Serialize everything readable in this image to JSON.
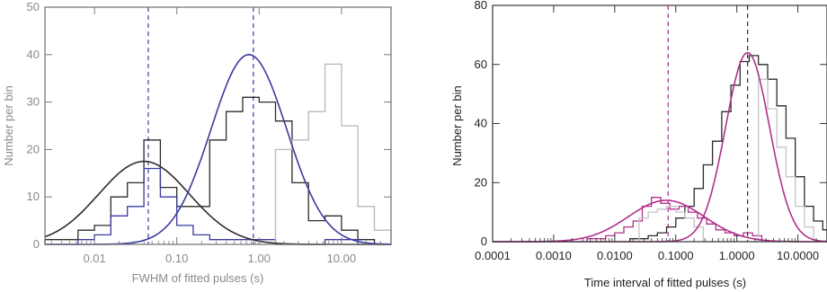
{
  "chart_data": [
    {
      "type": "line",
      "subtype": "histogram-with-gaussian-fits",
      "xscale": "log",
      "xlim": [
        0.0025,
        40
      ],
      "ylim": [
        0,
        50
      ],
      "xlabel": "FWHM of fitted pulses (s)",
      "ylabel": "Number per bin",
      "x_ticks": [
        {
          "value": 0.01,
          "label": "0.01"
        },
        {
          "value": 0.1,
          "label": "0.10"
        },
        {
          "value": 1,
          "label": "1.00"
        },
        {
          "value": 10,
          "label": "10.00"
        }
      ],
      "y_ticks": [
        {
          "value": 0,
          "label": "0"
        },
        {
          "value": 10,
          "label": "10"
        },
        {
          "value": 20,
          "label": "20"
        },
        {
          "value": 30,
          "label": "30"
        },
        {
          "value": 40,
          "label": "40"
        },
        {
          "value": 50,
          "label": "50"
        }
      ],
      "grid": false,
      "faded": true,
      "vlines": [
        {
          "x": 0.045,
          "color": "#3a3aa0"
        },
        {
          "x": 0.85,
          "color": "#3a3aa0"
        }
      ],
      "series": [
        {
          "kind": "histogram",
          "color": "#2b2b2b",
          "edges": [
            0.0025,
            0.004,
            0.0063,
            0.01,
            0.0158,
            0.0251,
            0.0398,
            0.0631,
            0.1,
            0.158,
            0.251,
            0.398,
            0.631,
            1.0,
            1.58,
            2.51,
            3.98,
            6.31,
            10,
            15.8,
            25.1,
            40
          ],
          "counts": [
            1,
            1,
            3,
            4,
            10,
            13,
            22,
            12,
            8,
            8,
            22,
            28,
            31,
            30,
            26,
            13,
            5,
            6,
            3,
            1,
            0
          ]
        },
        {
          "kind": "histogram",
          "color": "#3a3aa0",
          "edges": [
            0.0025,
            0.004,
            0.0063,
            0.01,
            0.0158,
            0.0251,
            0.0398,
            0.0631,
            0.1,
            0.158,
            0.251,
            0.398,
            0.631,
            1.0,
            1.58,
            2.51,
            3.98,
            6.31,
            10,
            15.8,
            25.1,
            40
          ],
          "counts": [
            0,
            0,
            1,
            2,
            6,
            8,
            16,
            10,
            4,
            2,
            1,
            1,
            1,
            1,
            0,
            0,
            0,
            1,
            1,
            0,
            0
          ]
        },
        {
          "kind": "histogram",
          "color": "#b8b8b8",
          "edges": [
            1.58,
            2.51,
            3.98,
            6.31,
            10,
            15.8,
            25.1,
            40
          ],
          "counts": [
            20,
            22,
            28,
            38,
            25,
            8,
            3
          ]
        },
        {
          "kind": "gaussian-log",
          "color": "#2b2b2b",
          "peak": 17.5,
          "center": 0.04,
          "sigma_log10": 0.55
        },
        {
          "kind": "gaussian-log",
          "color": "#3a3aa0",
          "peak": 40,
          "center": 0.75,
          "sigma_log10": 0.46
        }
      ]
    },
    {
      "type": "line",
      "subtype": "histogram-with-gaussian-fits",
      "xscale": "log",
      "xlim": [
        0.0001,
        30
      ],
      "ylim": [
        0,
        80
      ],
      "xlabel": "Time interval of fitted pulses (s)",
      "ylabel": "Number per bin",
      "x_ticks": [
        {
          "value": 0.0001,
          "label": "0.0001"
        },
        {
          "value": 0.001,
          "label": "0.0010"
        },
        {
          "value": 0.01,
          "label": "0.0100"
        },
        {
          "value": 0.1,
          "label": "0.1000"
        },
        {
          "value": 1,
          "label": "1.0000"
        },
        {
          "value": 10,
          "label": "10.0000"
        }
      ],
      "y_ticks": [
        {
          "value": 0,
          "label": "0"
        },
        {
          "value": 20,
          "label": "20"
        },
        {
          "value": 40,
          "label": "40"
        },
        {
          "value": 60,
          "label": "60"
        },
        {
          "value": 80,
          "label": "80"
        }
      ],
      "grid": false,
      "faded": false,
      "vlines": [
        {
          "x": 0.075,
          "color": "#b0308a"
        },
        {
          "x": 1.5,
          "color": "#2b2b2b"
        }
      ],
      "series": [
        {
          "kind": "histogram",
          "color": "#2b2b2b",
          "edges": [
            0.0177,
            0.025,
            0.0354,
            0.05,
            0.0707,
            0.1,
            0.141,
            0.2,
            0.283,
            0.4,
            0.566,
            0.8,
            1.13,
            1.6,
            2.26,
            3.2,
            4.53,
            6.4,
            9.05,
            12.8,
            18.1,
            25.6,
            30
          ],
          "counts": [
            1,
            1,
            2,
            3,
            5,
            8,
            12,
            18,
            26,
            34,
            44,
            53,
            61,
            63,
            60,
            55,
            46,
            35,
            22,
            12,
            7,
            4
          ]
        },
        {
          "kind": "histogram",
          "color": "#b0308a",
          "edges": [
            0.0035,
            0.005,
            0.0071,
            0.01,
            0.0141,
            0.02,
            0.0283,
            0.04,
            0.0566,
            0.08,
            0.113,
            0.16,
            0.226,
            0.32,
            0.453,
            0.64,
            0.905,
            1.28,
            1.81,
            2.56
          ],
          "counts": [
            1,
            1,
            2,
            3,
            5,
            7,
            12,
            15,
            13,
            11,
            12,
            10,
            8,
            6,
            4,
            3,
            2,
            3,
            2
          ]
        },
        {
          "kind": "histogram",
          "color": "#c4c4c4",
          "edges": [
            0.025,
            0.0354,
            0.05,
            0.0707,
            0.1,
            0.141,
            0.2,
            0.283,
            2.26,
            3.2,
            4.53,
            6.4,
            9.05,
            12.8,
            18.1
          ],
          "counts": [
            8,
            10,
            11,
            12,
            10,
            8,
            5,
            0,
            55,
            45,
            32,
            22,
            12,
            5
          ]
        },
        {
          "kind": "gaussian-log",
          "color": "#b0308a",
          "peak": 14,
          "center": 0.07,
          "sigma_log10": 0.62
        },
        {
          "kind": "gaussian-log",
          "color": "#b0308a",
          "peak": 64,
          "center": 1.5,
          "sigma_log10": 0.36
        }
      ]
    }
  ]
}
